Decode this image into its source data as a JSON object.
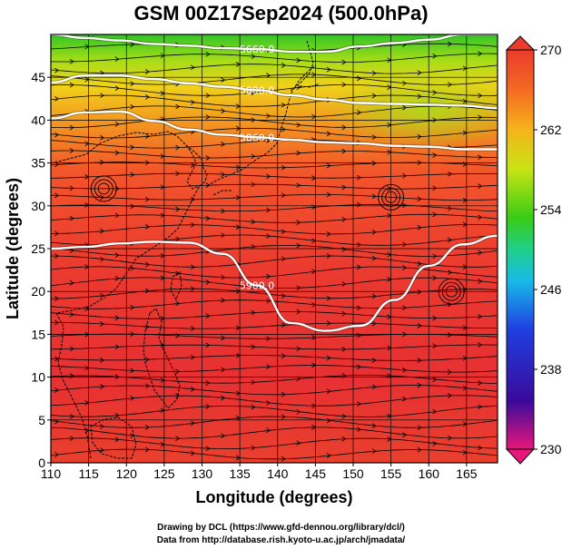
{
  "title": "GSM 00Z17Sep2024 (500.0hPa)",
  "xlabel": "Longitude (degrees)",
  "ylabel": "Latitude  (degrees)",
  "x_ticks": [
    "110",
    "115",
    "120",
    "125",
    "130",
    "135",
    "140",
    "145",
    "150",
    "155",
    "160",
    "165"
  ],
  "y_ticks": [
    "0",
    "5",
    "10",
    "15",
    "20",
    "25",
    "30",
    "35",
    "40",
    "45"
  ],
  "colorbar": {
    "min": 230,
    "max": 270,
    "labels": [
      "270",
      "262",
      "254",
      "246",
      "238",
      "230"
    ],
    "stops": [
      "#e8177a",
      "#3a0a9c",
      "#1f3fe0",
      "#18b9ea",
      "#1fd08a",
      "#39cc14",
      "#c6e414",
      "#f6b41a",
      "#f46a22",
      "#ea3b2c"
    ]
  },
  "contours": [
    {
      "label": "5900.0",
      "lats": [
        25.0,
        25.2,
        25.6,
        25.8,
        25.7,
        24.4,
        20.7,
        16.3,
        15.4,
        16.0,
        19.0,
        23.0,
        25.5,
        26.5
      ]
    },
    {
      "label": "5860.0",
      "lats": [
        40.2,
        40.9,
        41.0,
        39.9,
        38.9,
        38.3,
        38.0,
        37.7,
        37.4,
        37.3,
        37.0,
        36.9,
        36.6,
        36.6
      ]
    },
    {
      "label": "5800.0",
      "lats": [
        44.4,
        45.2,
        45.2,
        44.8,
        44.3,
        43.9,
        43.5,
        42.9,
        42.4,
        42.0,
        41.9,
        41.8,
        41.7,
        41.4
      ]
    },
    {
      "label": "5660.0",
      "lats": [
        50.0,
        49.6,
        49.3,
        48.9,
        48.7,
        48.4,
        48.3,
        48.0,
        48.0,
        48.6,
        49.0,
        49.4,
        50.0,
        50.0
      ]
    }
  ],
  "cyclones": [
    {
      "lon": 117.0,
      "lat": 32.0
    },
    {
      "lon": 155.0,
      "lat": 31.0
    },
    {
      "lon": 163.0,
      "lat": 20.0
    }
  ],
  "credits": {
    "drawing": "Drawing by DCL (https://www.gfd-dennou.org/library/dcl/)",
    "data": "Data from http://database.rish.kyoto-u.ac.jp/arch/jmadata/"
  }
}
